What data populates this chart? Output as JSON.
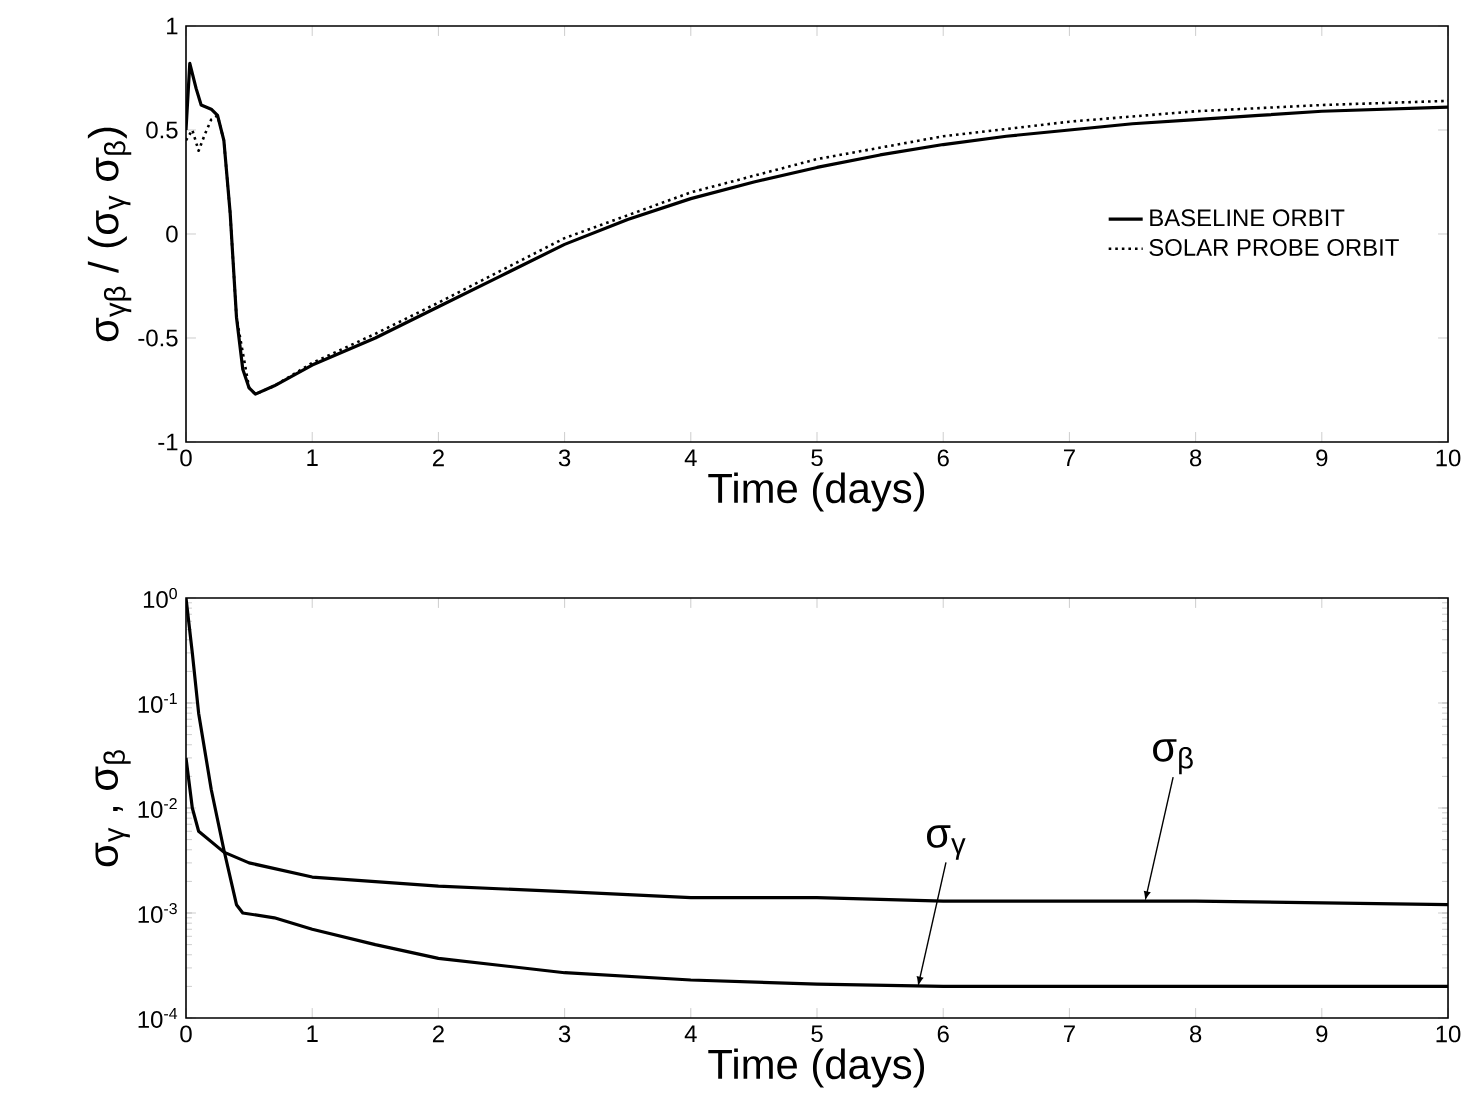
{
  "chart_data": [
    {
      "type": "line",
      "xlabel": "Time (days)",
      "ylabel": "σ$_{γβ}$ / (σ$_{γ}$ σ$_{β}$)",
      "xlim": [
        0,
        10
      ],
      "ylim": [
        -1,
        1
      ],
      "xticks": [
        0,
        1,
        2,
        3,
        4,
        5,
        6,
        7,
        8,
        9,
        10
      ],
      "yticks": [
        -1,
        -0.5,
        0,
        0.5,
        1
      ],
      "legend": "right",
      "series": [
        {
          "name": "BASELINE ORBIT",
          "color": "#000000",
          "line_style": "solid",
          "x": [
            0,
            0.03,
            0.08,
            0.12,
            0.2,
            0.25,
            0.3,
            0.35,
            0.4,
            0.45,
            0.5,
            0.55,
            0.7,
            1,
            1.5,
            2,
            2.5,
            3,
            3.5,
            4,
            4.5,
            5,
            5.5,
            6,
            6.5,
            7,
            7.5,
            8,
            8.5,
            9,
            9.5,
            10
          ],
          "values": [
            0.5,
            0.82,
            0.7,
            0.62,
            0.6,
            0.57,
            0.45,
            0.1,
            -0.4,
            -0.65,
            -0.74,
            -0.77,
            -0.73,
            -0.63,
            -0.5,
            -0.35,
            -0.2,
            -0.05,
            0.07,
            0.17,
            0.25,
            0.32,
            0.38,
            0.43,
            0.47,
            0.5,
            0.53,
            0.55,
            0.57,
            0.59,
            0.6,
            0.61
          ]
        },
        {
          "name": "SOLAR PROBE ORBIT",
          "color": "#000000",
          "line_style": "dotted",
          "x": [
            0,
            0.05,
            0.1,
            0.15,
            0.2,
            0.25,
            0.3,
            0.35,
            0.4,
            0.5,
            0.55,
            0.7,
            1,
            1.5,
            2,
            3,
            4,
            5,
            6,
            7,
            8,
            9,
            10
          ],
          "values": [
            0.45,
            0.5,
            0.4,
            0.48,
            0.55,
            0.57,
            0.45,
            0.1,
            -0.4,
            -0.74,
            -0.77,
            -0.73,
            -0.62,
            -0.48,
            -0.33,
            -0.02,
            0.2,
            0.36,
            0.47,
            0.54,
            0.59,
            0.62,
            0.64
          ]
        }
      ]
    },
    {
      "type": "line",
      "xlabel": "Time (days)",
      "ylabel": "σ$_{γ}$ , σ$_{β}$",
      "log": "y",
      "xlim": [
        0,
        10
      ],
      "ylim": [
        0.0001,
        1
      ],
      "xticks": [
        0,
        1,
        2,
        3,
        4,
        5,
        6,
        7,
        8,
        9,
        10
      ],
      "yticks": [
        {
          "value": 0.0001,
          "label": "10$^{-4}$"
        },
        {
          "value": 0.001,
          "label": "10$^{-3}$"
        },
        {
          "value": 0.01,
          "label": "10$^{-2}$"
        },
        {
          "value": 0.1,
          "label": "10$^{-1}$"
        },
        {
          "value": 1,
          "label": "10$^{0}$"
        }
      ],
      "annotations": [
        {
          "text": "σ$_{γ}$",
          "x": 5.8,
          "y": 0.0002
        },
        {
          "text": "σ$_{β}$",
          "x": 7.6,
          "y": 0.0013
        }
      ],
      "series": [
        {
          "color": "#000000",
          "x": [
            0,
            0.05,
            0.1,
            0.2,
            0.3,
            0.4,
            0.45,
            0.7,
            1,
            1.5,
            2,
            3,
            4,
            5,
            6,
            8,
            10
          ],
          "values": [
            1,
            0.3,
            0.08,
            0.015,
            0.004,
            0.0012,
            0.001,
            0.0009,
            0.0007,
            0.0005,
            0.00037,
            0.00027,
            0.00023,
            0.00021,
            0.0002,
            0.0002,
            0.0002
          ]
        },
        {
          "color": "#000000",
          "x": [
            0,
            0.05,
            0.1,
            0.3,
            0.5,
            1,
            2,
            3,
            4,
            5,
            6,
            8,
            10
          ],
          "values": [
            0.03,
            0.01,
            0.006,
            0.0038,
            0.003,
            0.0022,
            0.0018,
            0.0016,
            0.0014,
            0.0014,
            0.0013,
            0.0013,
            0.0012
          ]
        }
      ]
    }
  ]
}
